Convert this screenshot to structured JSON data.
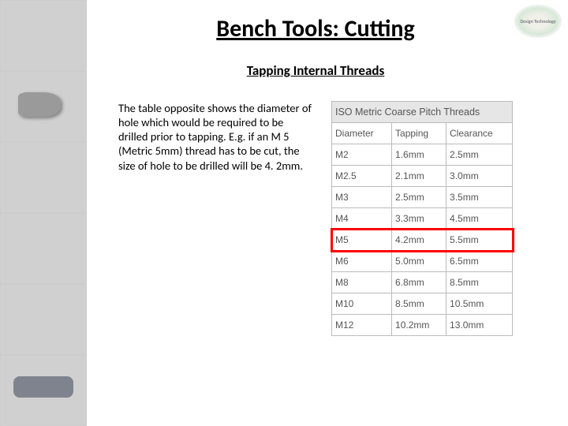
{
  "title": "Bench Tools: Cutting",
  "subtitle": "Tapping Internal Threads",
  "logo_text": "Design Technology",
  "body_text": "The table opposite shows the diameter of hole which would be required to be drilled prior to tapping. E.g. if an M 5 (Metric 5mm) thread has to be cut, the size of hole to be drilled will be 4. 2mm.",
  "table": {
    "title": "ISO Metric Coarse Pitch Threads",
    "columns": [
      "Diameter",
      "Tapping",
      "Clearance"
    ],
    "rows": [
      {
        "cells": [
          "M2",
          "1.6mm",
          "2.5mm"
        ],
        "highlight": false
      },
      {
        "cells": [
          "M2.5",
          "2.1mm",
          "3.0mm"
        ],
        "highlight": false
      },
      {
        "cells": [
          "M3",
          "2.5mm",
          "3.5mm"
        ],
        "highlight": false
      },
      {
        "cells": [
          "M4",
          "3.3mm",
          "4.5mm"
        ],
        "highlight": false
      },
      {
        "cells": [
          "M5",
          "4.2mm",
          "5.5mm"
        ],
        "highlight": true
      },
      {
        "cells": [
          "M6",
          "5.0mm",
          "6.5mm"
        ],
        "highlight": false
      },
      {
        "cells": [
          "M8",
          "6.8mm",
          "8.5mm"
        ],
        "highlight": false
      },
      {
        "cells": [
          "M10",
          "8.5mm",
          "10.5mm"
        ],
        "highlight": false
      },
      {
        "cells": [
          "M12",
          "10.2mm",
          "13.0mm"
        ],
        "highlight": false
      }
    ]
  },
  "sidebar_thumbs": [
    "welding",
    "clamp",
    "bearing",
    "rods",
    "lathe",
    "spacex"
  ],
  "highlight_color": "#ff0000"
}
